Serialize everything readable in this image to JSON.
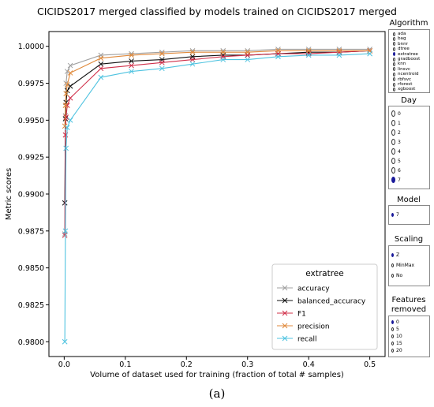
{
  "chart_data": {
    "type": "line",
    "title": "CICIDS2017 merged classified by models trained on CICIDS2017 merged",
    "xlabel": "Volume of dataset used for training (fraction of total # samples)",
    "ylabel": "Metric scores",
    "xlim": [
      -0.025,
      0.525
    ],
    "ylim": [
      0.979,
      1.001
    ],
    "xticks": [
      "0.0",
      "0.1",
      "0.2",
      "0.3",
      "0.4",
      "0.5"
    ],
    "xtick_values": [
      0.0,
      0.1,
      0.2,
      0.3,
      0.4,
      0.5
    ],
    "yticks": [
      "0.9800",
      "0.9825",
      "0.9850",
      "0.9875",
      "0.9900",
      "0.9925",
      "0.9950",
      "0.9975",
      "1.0000"
    ],
    "ytick_values": [
      0.98,
      0.9825,
      0.985,
      0.9875,
      0.99,
      0.9925,
      0.995,
      0.9975,
      1.0
    ],
    "grid": false,
    "legend": {
      "title": "extratree",
      "placement": "lower-right"
    },
    "x": [
      0.001,
      0.002,
      0.003,
      0.005,
      0.01,
      0.06,
      0.11,
      0.16,
      0.21,
      0.26,
      0.3,
      0.35,
      0.4,
      0.45,
      0.5
    ],
    "series": [
      {
        "name": "accuracy",
        "color": "#a0a0a0",
        "values": [
          0.9873,
          0.9953,
          0.9975,
          0.9983,
          0.9987,
          0.9994,
          0.9995,
          0.9996,
          0.9997,
          0.9997,
          0.9997,
          0.9998,
          0.9998,
          0.9998,
          0.9998
        ]
      },
      {
        "name": "balanced_accuracy",
        "color": "#111111",
        "values": [
          0.9894,
          0.9951,
          0.9962,
          0.997,
          0.9973,
          0.9988,
          0.999,
          0.9991,
          0.9993,
          0.9994,
          0.9994,
          0.9995,
          0.9996,
          0.9996,
          0.9997
        ]
      },
      {
        "name": "F1",
        "color": "#d0304a",
        "values": [
          0.9872,
          0.994,
          0.9952,
          0.996,
          0.9965,
          0.9985,
          0.9987,
          0.9989,
          0.9991,
          0.9993,
          0.9994,
          0.9995,
          0.9995,
          0.9996,
          0.9997
        ]
      },
      {
        "name": "precision",
        "color": "#e08a3c",
        "values": [
          0.9946,
          0.996,
          0.9968,
          0.9974,
          0.9982,
          0.9992,
          0.9994,
          0.9995,
          0.9996,
          0.9996,
          0.9996,
          0.9997,
          0.9997,
          0.9997,
          0.9997
        ]
      },
      {
        "name": "recall",
        "color": "#4fc3e0",
        "values": [
          0.98,
          0.9875,
          0.9931,
          0.9945,
          0.995,
          0.9979,
          0.9983,
          0.9985,
          0.9988,
          0.9991,
          0.9991,
          0.9993,
          0.9994,
          0.9994,
          0.9995
        ]
      }
    ]
  },
  "sidebar": {
    "algorithm": {
      "title": "Algorithm",
      "selected": "extratree",
      "options": [
        "ada",
        "bag",
        "bnnr",
        "dtree",
        "extratree",
        "gradboost",
        "knn",
        "linsvc",
        "ncentroid",
        "rbfsvc",
        "rforest",
        "xgboost"
      ]
    },
    "day": {
      "title": "Day",
      "selected": "7",
      "options": [
        "0",
        "1",
        "2",
        "3",
        "4",
        "5",
        "6",
        "7"
      ]
    },
    "model": {
      "title": "Model",
      "selected": "7",
      "options": [
        "7"
      ]
    },
    "scaling": {
      "title": "Scaling",
      "selected": "Z",
      "options": [
        "Z",
        "MinMax",
        "No"
      ]
    },
    "features_removed": {
      "title_line1": "Features",
      "title_line2": "removed",
      "selected": "0",
      "options": [
        "0",
        "5",
        "10",
        "15",
        "20"
      ]
    }
  },
  "caption": "(a)"
}
